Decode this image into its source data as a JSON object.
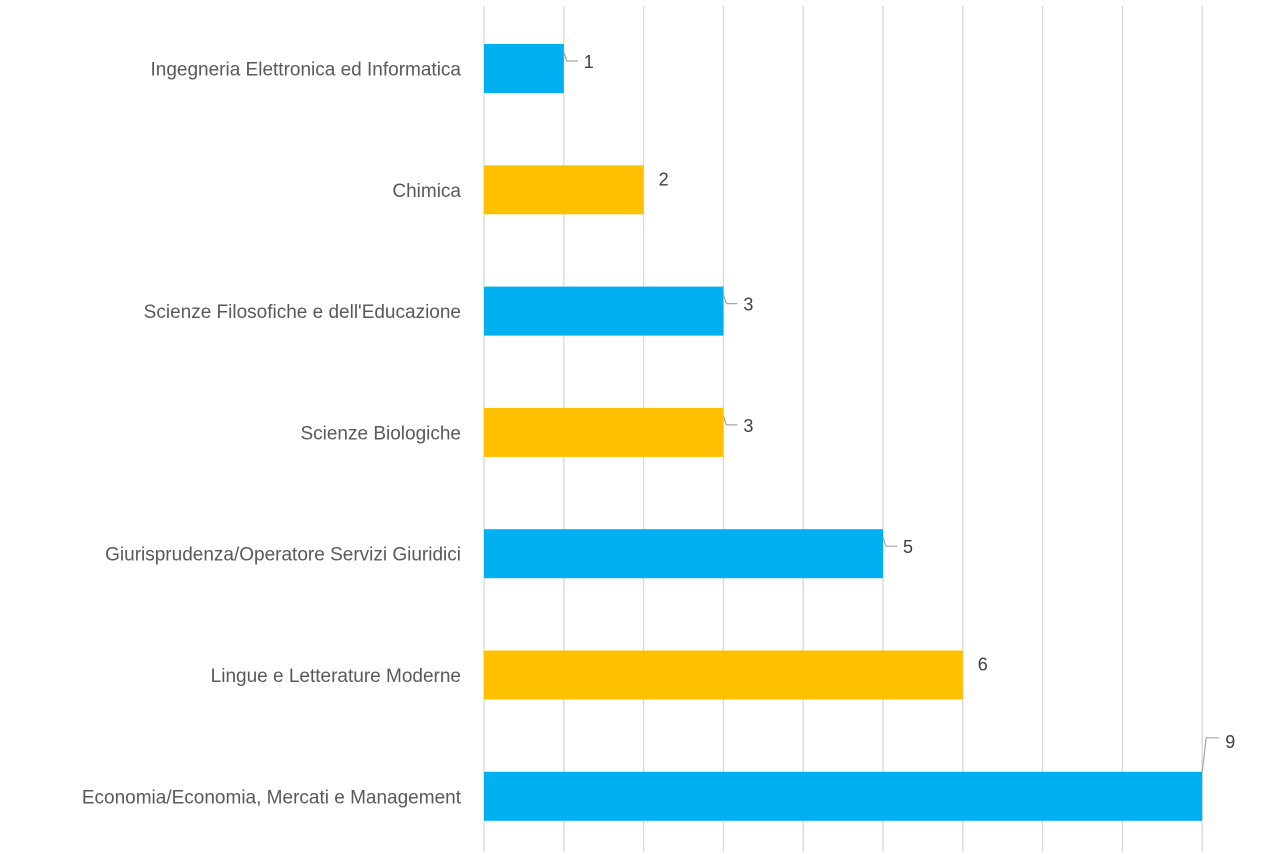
{
  "chart_data": {
    "type": "bar",
    "orientation": "horizontal",
    "title": "",
    "xlabel": "",
    "ylabel": "",
    "categories": [
      "Ingegneria Elettronica ed Informatica",
      "Chimica",
      "Scienze Filosofiche e dell'Educazione",
      "Scienze Biologiche",
      "Giurisprudenza/Operatore Servizi Giuridici",
      "Lingue e Letterature Moderne",
      "Economia/Economia, Mercati e Management"
    ],
    "values": [
      1,
      2,
      3,
      3,
      5,
      6,
      9
    ],
    "colors": [
      "#00b0f0",
      "#ffc000",
      "#00b0f0",
      "#ffc000",
      "#00b0f0",
      "#ffc000",
      "#00b0f0"
    ],
    "xlim": [
      0,
      9
    ],
    "xticks": [
      0,
      1,
      2,
      3,
      4,
      5,
      6,
      7,
      8,
      9
    ],
    "x_tick_labels_visible": false,
    "grid": "vertical",
    "data_labels": true,
    "legend": "none"
  }
}
